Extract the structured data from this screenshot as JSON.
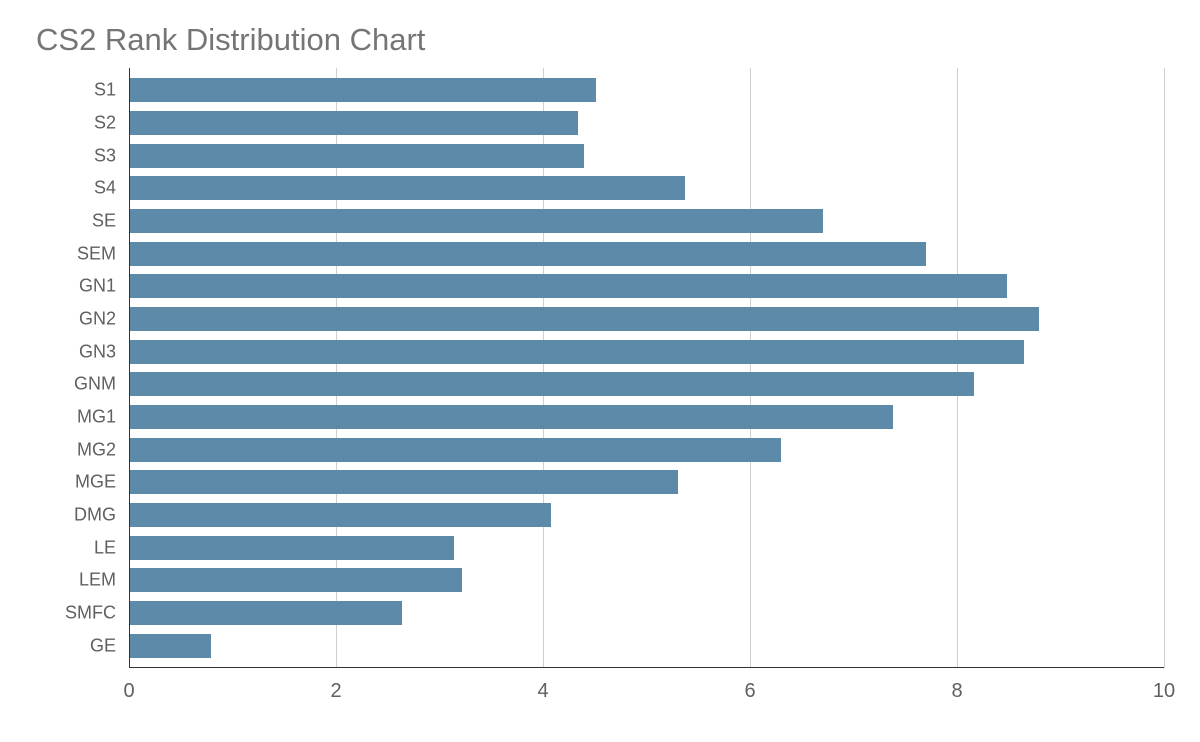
{
  "chart": {
    "type": "bar-horizontal",
    "title": "CS2 Rank Distribution Chart",
    "title_fontsize": 31,
    "title_color": "#757575",
    "background_color": "#ffffff",
    "bar_color": "#5d8aa8",
    "grid_color": "#cfcfcf",
    "axis_color": "#333333",
    "label_color": "#606060",
    "label_fontsize": 18,
    "xlabel_fontsize": 20,
    "xlim": [
      0,
      10
    ],
    "xtick_step": 2,
    "xticks": [
      0,
      2,
      4,
      6,
      8,
      10
    ],
    "categories": [
      "S1",
      "S2",
      "S3",
      "S4",
      "SE",
      "SEM",
      "GN1",
      "GN2",
      "GN3",
      "GNM",
      "MG1",
      "MG2",
      "MGE",
      "DMG",
      "LE",
      "LEM",
      "SMFC",
      "GE"
    ],
    "values": [
      4.51,
      4.33,
      4.39,
      5.37,
      6.7,
      7.7,
      8.48,
      8.79,
      8.65,
      8.16,
      7.38,
      6.3,
      5.3,
      4.07,
      3.13,
      3.21,
      2.63,
      0.78
    ],
    "bar_rel_height": 0.74,
    "plot_padding_top": 6
  }
}
